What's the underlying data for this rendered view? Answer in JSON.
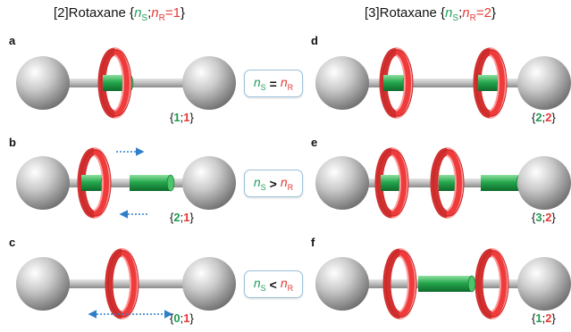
{
  "titles": {
    "left": {
      "prefix": "[2]Rotaxane {",
      "s_n": "n",
      "s_sub": "S",
      "sep": ";",
      "r_n": "n",
      "r_sub": "R",
      "r_val": "=1",
      "suffix": "}"
    },
    "right": {
      "prefix": "[3]Rotaxane {",
      "s_n": "n",
      "s_sub": "S",
      "sep": ";",
      "r_n": "n",
      "r_sub": "R",
      "r_val": "=2",
      "suffix": "}"
    }
  },
  "panels": [
    {
      "label": "a",
      "config": {
        "open": "{",
        "s": "1",
        "sep": ";",
        "r": "1",
        "close": "}"
      }
    },
    {
      "label": "b",
      "config": {
        "open": "{",
        "s": "2",
        "sep": ";",
        "r": "1",
        "close": "}"
      }
    },
    {
      "label": "c",
      "config": {
        "open": "{",
        "s": "0",
        "sep": ";",
        "r": "1",
        "close": "}"
      }
    },
    {
      "label": "d",
      "config": {
        "open": "{",
        "s": "2",
        "sep": ";",
        "r": "2",
        "close": "}"
      }
    },
    {
      "label": "e",
      "config": {
        "open": "{",
        "s": "3",
        "sep": ";",
        "r": "2",
        "close": "}"
      }
    },
    {
      "label": "f",
      "config": {
        "open": "{",
        "s": "1",
        "sep": ";",
        "r": "2",
        "close": "}"
      }
    }
  ],
  "relations": [
    {
      "n1": "n",
      "sub1": "S",
      "op": "=",
      "n2": "n",
      "sub2": "R"
    },
    {
      "n1": "n",
      "sub1": "S",
      "op": ">",
      "n2": "n",
      "sub2": "R"
    },
    {
      "n1": "n",
      "sub1": "S",
      "op": "<",
      "n2": "n",
      "sub2": "R"
    }
  ],
  "colors": {
    "station": "#1fa04a",
    "ring": "#ef3b3b",
    "stopper": "#b8b8b8",
    "axle": "#b0b0b0",
    "arrow": "#2f7fc8",
    "s_text": "#1e9c50",
    "r_text": "#e53935"
  }
}
